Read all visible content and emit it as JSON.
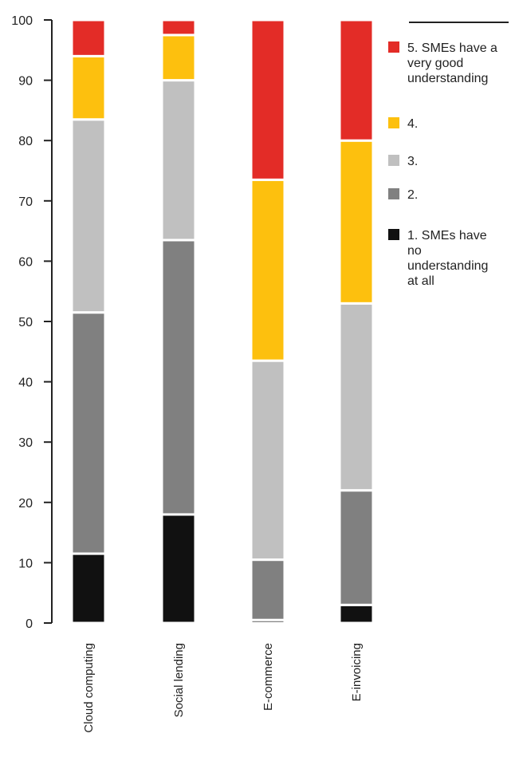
{
  "chart_data": {
    "type": "bar",
    "stacked": true,
    "title": "",
    "xlabel": "",
    "ylabel": "",
    "ylim": [
      0,
      100
    ],
    "yticks": [
      0,
      10,
      20,
      30,
      40,
      50,
      60,
      70,
      80,
      90,
      100
    ],
    "categories": [
      "Cloud computing",
      "Social lending",
      "E-commerce",
      "E-invoicing"
    ],
    "series": [
      {
        "name": "1. SMEs have no understanding at all",
        "color": "#111111",
        "values": [
          11.5,
          18,
          0.5,
          3
        ]
      },
      {
        "name": "2.",
        "color": "#808080",
        "values": [
          40,
          45.5,
          10,
          19
        ]
      },
      {
        "name": "3.",
        "color": "#c0c0c0",
        "values": [
          32,
          26.5,
          33,
          31
        ]
      },
      {
        "name": "4.",
        "color": "#fdc00e",
        "values": [
          10.5,
          7.5,
          30,
          27
        ]
      },
      {
        "name": "5. SMEs have a very good understanding",
        "color": "#e32c27",
        "values": [
          6,
          2.5,
          26.5,
          20
        ]
      }
    ],
    "legend": {
      "placement": "right",
      "order": [
        4,
        3,
        2,
        1,
        0
      ],
      "lines": [
        [
          "5. SMEs have a",
          "very good",
          "understanding"
        ],
        [
          "4."
        ],
        [
          "3."
        ],
        [
          "2."
        ],
        [
          "1. SMEs have",
          "no",
          "understanding",
          "at all"
        ]
      ]
    },
    "grid": false
  }
}
